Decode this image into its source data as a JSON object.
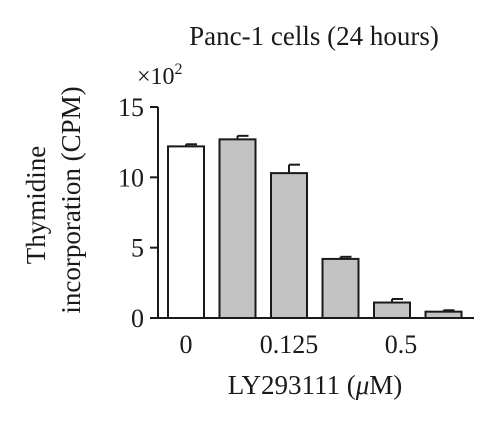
{
  "chart_data": {
    "type": "bar",
    "title": "Panc-1 cells (24 hours)",
    "y_multiplier": "×10",
    "y_multiplier_exp": "2",
    "ylabel_line1": "Thymidine",
    "ylabel_line2": "incorporation (CPM)",
    "xlabel_main": "LY293111 (",
    "xlabel_mu": "μ",
    "xlabel_end": "M)",
    "ylim": [
      0,
      15
    ],
    "yticks": [
      0,
      5,
      10,
      15
    ],
    "ytick_labels": [
      "0",
      "5",
      "10",
      "15"
    ],
    "xtick_labels": [
      "0",
      "0.125",
      "0.5"
    ],
    "xtick_bar_index": [
      0,
      2,
      4
    ],
    "values": [
      12.2,
      12.7,
      10.3,
      4.2,
      1.1,
      0.45
    ],
    "errors": [
      0.15,
      0.25,
      0.6,
      0.15,
      0.25,
      0.1
    ],
    "fills": [
      "#ffffff",
      "#c3c3c3",
      "#c3c3c3",
      "#c3c3c3",
      "#c3c3c3",
      "#c3c3c3"
    ]
  }
}
